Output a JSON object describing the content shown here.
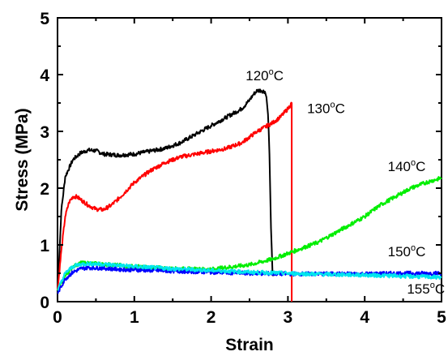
{
  "chart_data": {
    "type": "line",
    "title": "",
    "xlabel": "Strain",
    "ylabel": "Stress (MPa)",
    "xlim": [
      0,
      5
    ],
    "ylim": [
      0,
      5
    ],
    "xticks": [
      "0",
      "1",
      "2",
      "3",
      "4",
      "5"
    ],
    "yticks": [
      "0",
      "1",
      "2",
      "3",
      "4",
      "5"
    ],
    "grid": false,
    "series": [
      {
        "name": "120°C",
        "color": "#000000",
        "x": [
          0,
          0.05,
          0.1,
          0.2,
          0.3,
          0.4,
          0.5,
          0.6,
          0.8,
          1.0,
          1.2,
          1.4,
          1.6,
          1.8,
          2.0,
          2.2,
          2.4,
          2.5,
          2.55,
          2.6,
          2.65,
          2.7,
          2.72,
          2.74,
          2.75,
          2.76,
          2.78,
          2.79,
          2.8,
          2.81
        ],
        "y": [
          0.15,
          1.6,
          2.2,
          2.5,
          2.62,
          2.67,
          2.66,
          2.6,
          2.58,
          2.6,
          2.65,
          2.7,
          2.8,
          2.95,
          3.1,
          3.25,
          3.4,
          3.55,
          3.65,
          3.72,
          3.72,
          3.7,
          3.6,
          3.3,
          3.0,
          2.6,
          1.3,
          0.9,
          0.5,
          0.45
        ]
      },
      {
        "name": "130°C",
        "color": "#ff0000",
        "x": [
          0,
          0.05,
          0.1,
          0.15,
          0.2,
          0.25,
          0.3,
          0.4,
          0.5,
          0.6,
          0.7,
          0.8,
          1.0,
          1.2,
          1.4,
          1.6,
          1.8,
          2.0,
          2.2,
          2.4,
          2.6,
          2.8,
          2.9,
          3.0,
          3.05,
          3.05
        ],
        "y": [
          0.2,
          0.9,
          1.5,
          1.75,
          1.85,
          1.85,
          1.8,
          1.7,
          1.63,
          1.62,
          1.7,
          1.82,
          2.1,
          2.3,
          2.45,
          2.55,
          2.6,
          2.65,
          2.7,
          2.8,
          3.0,
          3.15,
          3.25,
          3.4,
          3.5,
          0.0
        ]
      },
      {
        "name": "140°C",
        "color": "#00ee00",
        "x": [
          0,
          0.1,
          0.2,
          0.3,
          0.4,
          0.6,
          0.8,
          1.0,
          1.5,
          2.0,
          2.5,
          2.8,
          3.0,
          3.2,
          3.4,
          3.6,
          3.8,
          4.0,
          4.2,
          4.4,
          4.6,
          4.8,
          5.0
        ],
        "y": [
          0.2,
          0.45,
          0.62,
          0.68,
          0.68,
          0.66,
          0.64,
          0.62,
          0.58,
          0.57,
          0.65,
          0.75,
          0.85,
          0.95,
          1.05,
          1.2,
          1.35,
          1.5,
          1.7,
          1.85,
          2.0,
          2.1,
          2.18
        ]
      },
      {
        "name": "150°C",
        "color": "#0000ff",
        "x": [
          0,
          0.1,
          0.2,
          0.3,
          0.4,
          0.6,
          0.8,
          1.0,
          1.5,
          2.0,
          2.5,
          3.0,
          3.5,
          4.0,
          4.5,
          5.0
        ],
        "y": [
          0.15,
          0.4,
          0.52,
          0.58,
          0.6,
          0.59,
          0.57,
          0.56,
          0.54,
          0.52,
          0.5,
          0.49,
          0.49,
          0.49,
          0.5,
          0.5
        ]
      },
      {
        "name": "155°C",
        "color": "#00e5ee",
        "x": [
          0,
          0.1,
          0.2,
          0.3,
          0.4,
          0.6,
          0.8,
          1.0,
          1.5,
          2.0,
          2.5,
          3.0,
          3.5,
          4.0,
          4.5,
          5.0
        ],
        "y": [
          0.2,
          0.5,
          0.62,
          0.66,
          0.67,
          0.66,
          0.64,
          0.62,
          0.58,
          0.55,
          0.52,
          0.5,
          0.48,
          0.47,
          0.45,
          0.43
        ]
      }
    ],
    "annotations": [
      {
        "text": "120°C",
        "x": 2.45,
        "y": 3.9
      },
      {
        "text": "130°C",
        "x": 3.25,
        "y": 3.32
      },
      {
        "text": "140°C",
        "x": 4.3,
        "y": 2.3
      },
      {
        "text": "150°C",
        "x": 4.3,
        "y": 0.8
      },
      {
        "text": "155°C",
        "x": 4.55,
        "y": 0.14
      }
    ]
  }
}
